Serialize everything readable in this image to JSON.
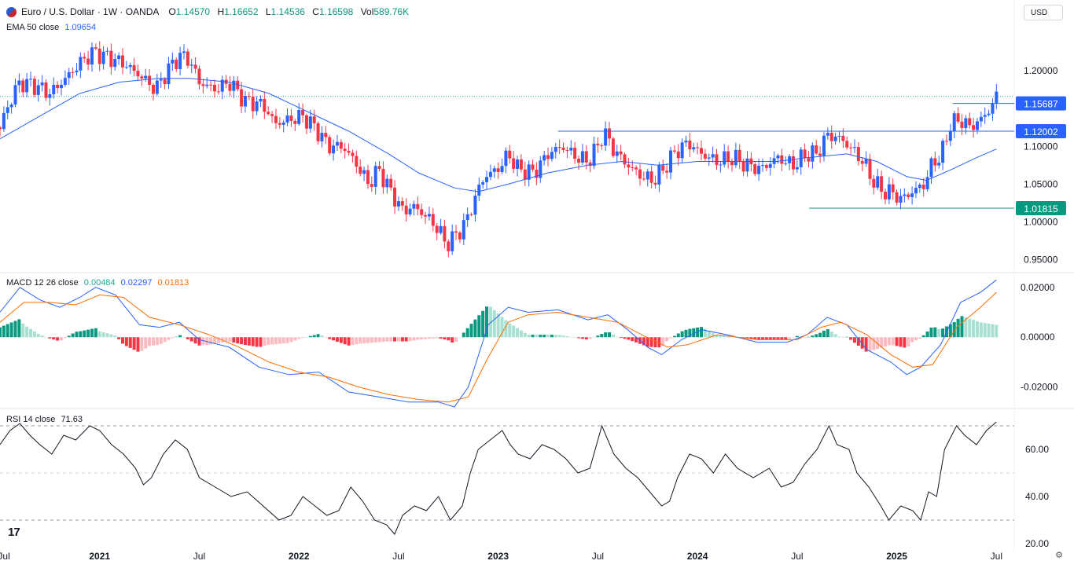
{
  "header": {
    "symbol": "Euro / U.S. Dollar · 1W · OANDA",
    "open_label": "O",
    "open": "1.14570",
    "high_label": "H",
    "high": "1.16652",
    "low_label": "L",
    "low": "1.14536",
    "close_label": "C",
    "close": "1.16598",
    "vol_label": "Vol",
    "vol": "589.76K",
    "currency": "USD"
  },
  "ema_legend": {
    "label": "EMA 50 close",
    "value": "1.09654"
  },
  "macd_legend": {
    "label": "MACD 12 26 close",
    "hist": "0.00484",
    "macd": "0.02297",
    "signal": "0.01813"
  },
  "rsi_legend": {
    "label": "RSI 14 close",
    "value": "71.63"
  },
  "colors": {
    "up": "#2962ff",
    "down": "#f23645",
    "ema": "#2962ff",
    "macd": "#2962ff",
    "signal": "#ff6d00",
    "hist_up_strong": "#089981",
    "hist_up_weak": "#a8e0d2",
    "hist_down_strong": "#f23645",
    "hist_down_weak": "#fbbcc1",
    "rsi": "#131722",
    "label_blue": "#2962ff",
    "label_green": "#089981"
  },
  "chart_data": {
    "type": "candlestick",
    "title": "Euro / U.S. Dollar · 1W · OANDA",
    "price_axis": {
      "ticks": [
        0.95,
        1.0,
        1.05,
        1.1,
        1.15,
        1.2
      ],
      "tick_labels": [
        "0.95000",
        "1.00000",
        "1.05000",
        "1.10000",
        "",
        "1.20000"
      ],
      "range": [
        0.935,
        1.25
      ]
    },
    "x_ticks": [
      {
        "t": 2020.52,
        "label": "Jul"
      },
      {
        "t": 2021.0,
        "label": "2021"
      },
      {
        "t": 2021.5,
        "label": "Jul"
      },
      {
        "t": 2022.0,
        "label": "2022"
      },
      {
        "t": 2022.5,
        "label": "Jul"
      },
      {
        "t": 2023.0,
        "label": "2023"
      },
      {
        "t": 2023.5,
        "label": "Jul"
      },
      {
        "t": 2024.0,
        "label": "2024"
      },
      {
        "t": 2024.5,
        "label": "Jul"
      },
      {
        "t": 2025.0,
        "label": "2025"
      },
      {
        "t": 2025.5,
        "label": "Jul"
      }
    ],
    "x_range": [
      2020.5,
      2025.55
    ],
    "price_path": [
      [
        2020.5,
        1.125
      ],
      [
        2020.55,
        1.16
      ],
      [
        2020.6,
        1.185
      ],
      [
        2020.68,
        1.18
      ],
      [
        2020.75,
        1.17
      ],
      [
        2020.83,
        1.19
      ],
      [
        2020.9,
        1.21
      ],
      [
        2020.97,
        1.225
      ],
      [
        2021.02,
        1.22
      ],
      [
        2021.12,
        1.21
      ],
      [
        2021.22,
        1.19
      ],
      [
        2021.28,
        1.175
      ],
      [
        2021.34,
        1.2
      ],
      [
        2021.4,
        1.22
      ],
      [
        2021.45,
        1.215
      ],
      [
        2021.5,
        1.185
      ],
      [
        2021.58,
        1.175
      ],
      [
        2021.65,
        1.185
      ],
      [
        2021.73,
        1.16
      ],
      [
        2021.82,
        1.155
      ],
      [
        2021.88,
        1.13
      ],
      [
        2021.95,
        1.135
      ],
      [
        2022.02,
        1.14
      ],
      [
        2022.08,
        1.125
      ],
      [
        2022.15,
        1.1
      ],
      [
        2022.22,
        1.1
      ],
      [
        2022.28,
        1.08
      ],
      [
        2022.35,
        1.05
      ],
      [
        2022.4,
        1.07
      ],
      [
        2022.45,
        1.045
      ],
      [
        2022.52,
        1.015
      ],
      [
        2022.58,
        1.02
      ],
      [
        2022.65,
        1.005
      ],
      [
        2022.7,
        0.99
      ],
      [
        2022.74,
        0.97
      ],
      [
        2022.78,
        0.98
      ],
      [
        2022.84,
        1.0
      ],
      [
        2022.88,
        1.03
      ],
      [
        2022.93,
        1.06
      ],
      [
        2023.0,
        1.07
      ],
      [
        2023.05,
        1.09
      ],
      [
        2023.1,
        1.07
      ],
      [
        2023.18,
        1.065
      ],
      [
        2023.25,
        1.09
      ],
      [
        2023.32,
        1.1
      ],
      [
        2023.4,
        1.085
      ],
      [
        2023.45,
        1.08
      ],
      [
        2023.5,
        1.1
      ],
      [
        2023.53,
        1.12
      ],
      [
        2023.58,
        1.095
      ],
      [
        2023.65,
        1.075
      ],
      [
        2023.72,
        1.06
      ],
      [
        2023.78,
        1.055
      ],
      [
        2023.83,
        1.07
      ],
      [
        2023.88,
        1.09
      ],
      [
        2023.95,
        1.105
      ],
      [
        2024.02,
        1.09
      ],
      [
        2024.1,
        1.08
      ],
      [
        2024.18,
        1.085
      ],
      [
        2024.25,
        1.075
      ],
      [
        2024.32,
        1.07
      ],
      [
        2024.4,
        1.085
      ],
      [
        2024.48,
        1.075
      ],
      [
        2024.55,
        1.09
      ],
      [
        2024.6,
        1.09
      ],
      [
        2024.65,
        1.115
      ],
      [
        2024.72,
        1.11
      ],
      [
        2024.78,
        1.095
      ],
      [
        2024.83,
        1.08
      ],
      [
        2024.88,
        1.055
      ],
      [
        2024.93,
        1.04
      ],
      [
        2024.97,
        1.04
      ],
      [
        2025.02,
        1.03
      ],
      [
        2025.08,
        1.04
      ],
      [
        2025.14,
        1.05
      ],
      [
        2025.18,
        1.08
      ],
      [
        2025.22,
        1.085
      ],
      [
        2025.27,
        1.13
      ],
      [
        2025.32,
        1.135
      ],
      [
        2025.37,
        1.125
      ],
      [
        2025.42,
        1.135
      ],
      [
        2025.47,
        1.15
      ],
      [
        2025.5,
        1.166
      ]
    ],
    "ema_path": [
      [
        2020.5,
        1.11
      ],
      [
        2020.7,
        1.14
      ],
      [
        2020.9,
        1.17
      ],
      [
        2021.1,
        1.185
      ],
      [
        2021.3,
        1.19
      ],
      [
        2021.45,
        1.19
      ],
      [
        2021.65,
        1.185
      ],
      [
        2021.85,
        1.17
      ],
      [
        2022.05,
        1.145
      ],
      [
        2022.25,
        1.12
      ],
      [
        2022.45,
        1.09
      ],
      [
        2022.6,
        1.065
      ],
      [
        2022.78,
        1.045
      ],
      [
        2022.9,
        1.04
      ],
      [
        2023.05,
        1.05
      ],
      [
        2023.25,
        1.065
      ],
      [
        2023.45,
        1.075
      ],
      [
        2023.62,
        1.08
      ],
      [
        2023.8,
        1.075
      ],
      [
        2024.0,
        1.08
      ],
      [
        2024.2,
        1.08
      ],
      [
        2024.4,
        1.08
      ],
      [
        2024.55,
        1.085
      ],
      [
        2024.75,
        1.09
      ],
      [
        2024.9,
        1.08
      ],
      [
        2025.05,
        1.06
      ],
      [
        2025.15,
        1.055
      ],
      [
        2025.28,
        1.07
      ],
      [
        2025.4,
        1.085
      ],
      [
        2025.5,
        1.0965
      ]
    ],
    "price_levels": [
      {
        "value": 1.15687,
        "label": "1.15687",
        "color": "#2962ff",
        "t_start": 2025.28
      },
      {
        "value": 1.12002,
        "label": "1.12002",
        "color": "#2962ff",
        "t_start": 2023.3
      },
      {
        "value": 1.01815,
        "label": "1.01815",
        "color": "#089981",
        "t_start": 2024.56
      }
    ],
    "last_price": 1.16598,
    "macd_axis": {
      "ticks": [
        0.02,
        0.0,
        -0.02
      ],
      "tick_labels": [
        "0.02000",
        "0.00000",
        "-0.02000"
      ],
      "range": [
        -0.028,
        0.025
      ]
    },
    "macd_line": [
      [
        2020.5,
        0.01
      ],
      [
        2020.6,
        0.02
      ],
      [
        2020.7,
        0.015
      ],
      [
        2020.8,
        0.012
      ],
      [
        2020.9,
        0.016
      ],
      [
        2020.98,
        0.02
      ],
      [
        2021.08,
        0.017
      ],
      [
        2021.2,
        0.005
      ],
      [
        2021.3,
        0.004
      ],
      [
        2021.4,
        0.006
      ],
      [
        2021.5,
        -0.001
      ],
      [
        2021.65,
        -0.004
      ],
      [
        2021.8,
        -0.012
      ],
      [
        2021.95,
        -0.015
      ],
      [
        2022.1,
        -0.014
      ],
      [
        2022.25,
        -0.022
      ],
      [
        2022.4,
        -0.024
      ],
      [
        2022.55,
        -0.026
      ],
      [
        2022.7,
        -0.026
      ],
      [
        2022.78,
        -0.028
      ],
      [
        2022.85,
        -0.02
      ],
      [
        2022.95,
        0.005
      ],
      [
        2023.05,
        0.012
      ],
      [
        2023.15,
        0.01
      ],
      [
        2023.3,
        0.011
      ],
      [
        2023.45,
        0.007
      ],
      [
        2023.55,
        0.009
      ],
      [
        2023.65,
        0.003
      ],
      [
        2023.75,
        -0.004
      ],
      [
        2023.82,
        -0.007
      ],
      [
        2023.92,
        -0.001
      ],
      [
        2024.02,
        0.003
      ],
      [
        2024.15,
        0.001
      ],
      [
        2024.3,
        -0.002
      ],
      [
        2024.45,
        -0.002
      ],
      [
        2024.55,
        0.001
      ],
      [
        2024.65,
        0.008
      ],
      [
        2024.75,
        0.005
      ],
      [
        2024.85,
        -0.005
      ],
      [
        2024.97,
        -0.01
      ],
      [
        2025.05,
        -0.015
      ],
      [
        2025.12,
        -0.012
      ],
      [
        2025.22,
        -0.003
      ],
      [
        2025.32,
        0.014
      ],
      [
        2025.42,
        0.018
      ],
      [
        2025.5,
        0.023
      ]
    ],
    "signal_line": [
      [
        2020.5,
        0.006
      ],
      [
        2020.62,
        0.014
      ],
      [
        2020.75,
        0.014
      ],
      [
        2020.88,
        0.013
      ],
      [
        2021.0,
        0.017
      ],
      [
        2021.12,
        0.016
      ],
      [
        2021.25,
        0.008
      ],
      [
        2021.4,
        0.005
      ],
      [
        2021.55,
        0.001
      ],
      [
        2021.7,
        -0.004
      ],
      [
        2021.85,
        -0.01
      ],
      [
        2022.0,
        -0.014
      ],
      [
        2022.15,
        -0.016
      ],
      [
        2022.3,
        -0.02
      ],
      [
        2022.45,
        -0.023
      ],
      [
        2022.6,
        -0.025
      ],
      [
        2022.75,
        -0.026
      ],
      [
        2022.85,
        -0.024
      ],
      [
        2022.95,
        -0.008
      ],
      [
        2023.05,
        0.006
      ],
      [
        2023.15,
        0.009
      ],
      [
        2023.3,
        0.01
      ],
      [
        2023.45,
        0.008
      ],
      [
        2023.6,
        0.006
      ],
      [
        2023.72,
        0.001
      ],
      [
        2023.85,
        -0.004
      ],
      [
        2023.95,
        -0.003
      ],
      [
        2024.1,
        0.001
      ],
      [
        2024.3,
        -0.001
      ],
      [
        2024.5,
        -0.001
      ],
      [
        2024.62,
        0.004
      ],
      [
        2024.72,
        0.006
      ],
      [
        2024.85,
        0.001
      ],
      [
        2024.97,
        -0.007
      ],
      [
        2025.08,
        -0.012
      ],
      [
        2025.18,
        -0.011
      ],
      [
        2025.3,
        0.004
      ],
      [
        2025.42,
        0.012
      ],
      [
        2025.5,
        0.018
      ]
    ],
    "rsi_axis": {
      "ticks": [
        60,
        40,
        20
      ],
      "tick_labels": [
        "60.00",
        "40.00",
        "20.00"
      ],
      "range": [
        18,
        76
      ],
      "bands": [
        30,
        50,
        70
      ]
    },
    "rsi_path": [
      [
        2020.5,
        62
      ],
      [
        2020.55,
        68
      ],
      [
        2020.6,
        71
      ],
      [
        2020.65,
        66
      ],
      [
        2020.7,
        62
      ],
      [
        2020.76,
        58
      ],
      [
        2020.82,
        66
      ],
      [
        2020.88,
        64
      ],
      [
        2020.95,
        70
      ],
      [
        2021.0,
        68
      ],
      [
        2021.06,
        62
      ],
      [
        2021.12,
        58
      ],
      [
        2021.18,
        52
      ],
      [
        2021.22,
        45
      ],
      [
        2021.26,
        48
      ],
      [
        2021.32,
        58
      ],
      [
        2021.38,
        64
      ],
      [
        2021.44,
        60
      ],
      [
        2021.5,
        48
      ],
      [
        2021.58,
        44
      ],
      [
        2021.66,
        40
      ],
      [
        2021.74,
        42
      ],
      [
        2021.82,
        36
      ],
      [
        2021.9,
        30
      ],
      [
        2021.96,
        32
      ],
      [
        2022.02,
        40
      ],
      [
        2022.08,
        36
      ],
      [
        2022.14,
        32
      ],
      [
        2022.2,
        34
      ],
      [
        2022.26,
        44
      ],
      [
        2022.32,
        38
      ],
      [
        2022.38,
        30
      ],
      [
        2022.44,
        28
      ],
      [
        2022.48,
        24
      ],
      [
        2022.52,
        32
      ],
      [
        2022.58,
        36
      ],
      [
        2022.64,
        34
      ],
      [
        2022.7,
        40
      ],
      [
        2022.76,
        30
      ],
      [
        2022.82,
        36
      ],
      [
        2022.86,
        50
      ],
      [
        2022.9,
        60
      ],
      [
        2022.96,
        64
      ],
      [
        2023.02,
        68
      ],
      [
        2023.06,
        62
      ],
      [
        2023.1,
        58
      ],
      [
        2023.16,
        56
      ],
      [
        2023.22,
        62
      ],
      [
        2023.28,
        60
      ],
      [
        2023.34,
        56
      ],
      [
        2023.4,
        50
      ],
      [
        2023.46,
        52
      ],
      [
        2023.52,
        70
      ],
      [
        2023.58,
        58
      ],
      [
        2023.64,
        52
      ],
      [
        2023.7,
        48
      ],
      [
        2023.76,
        42
      ],
      [
        2023.82,
        36
      ],
      [
        2023.86,
        38
      ],
      [
        2023.9,
        48
      ],
      [
        2023.96,
        58
      ],
      [
        2024.02,
        56
      ],
      [
        2024.08,
        50
      ],
      [
        2024.14,
        58
      ],
      [
        2024.2,
        52
      ],
      [
        2024.28,
        48
      ],
      [
        2024.36,
        52
      ],
      [
        2024.42,
        44
      ],
      [
        2024.48,
        46
      ],
      [
        2024.54,
        54
      ],
      [
        2024.6,
        60
      ],
      [
        2024.66,
        70
      ],
      [
        2024.7,
        62
      ],
      [
        2024.76,
        60
      ],
      [
        2024.8,
        50
      ],
      [
        2024.86,
        44
      ],
      [
        2024.92,
        36
      ],
      [
        2024.96,
        30
      ],
      [
        2025.02,
        36
      ],
      [
        2025.08,
        34
      ],
      [
        2025.12,
        30
      ],
      [
        2025.16,
        42
      ],
      [
        2025.2,
        40
      ],
      [
        2025.24,
        60
      ],
      [
        2025.3,
        70
      ],
      [
        2025.34,
        66
      ],
      [
        2025.4,
        62
      ],
      [
        2025.45,
        68
      ],
      [
        2025.5,
        71.63
      ]
    ]
  }
}
